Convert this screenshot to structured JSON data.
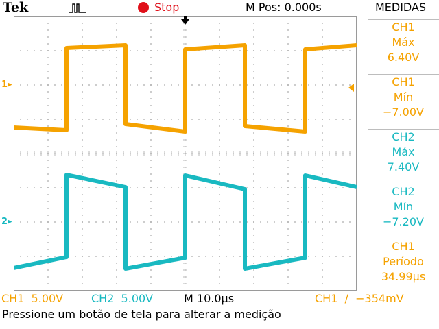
{
  "header": {
    "brand": "Tek",
    "run_state": "Stop",
    "m_pos": "M Pos: 0.000s",
    "menu_title": "MEDIDAS"
  },
  "markers": {
    "ch1": "1",
    "ch2": "2"
  },
  "measurements": [
    {
      "channel": "CH1",
      "type": "Máx",
      "value": "6.40V",
      "color": "#f5a200"
    },
    {
      "channel": "CH1",
      "type": "Mín",
      "value": "−7.00V",
      "color": "#f5a200"
    },
    {
      "channel": "CH2",
      "type": "Máx",
      "value": "7.40V",
      "color": "#19b9c1"
    },
    {
      "channel": "CH2",
      "type": "Mín",
      "value": "−7.20V",
      "color": "#19b9c1"
    },
    {
      "channel": "CH1",
      "type": "Período",
      "value": "34.99µs",
      "color": "#f5a200"
    }
  ],
  "status": {
    "ch1_scale": "CH1  5.00V",
    "ch2_scale": "CH2  5.00V",
    "timebase": "M 10.0µs",
    "trigger": "CH1  ∕  −354mV"
  },
  "message": "Pressione um botão de tela para alterar a medição",
  "colors": {
    "ch1": "#f5a200",
    "ch2": "#19b9c1",
    "grid": "#9a9a9a",
    "stop": "#e0101a"
  }
}
